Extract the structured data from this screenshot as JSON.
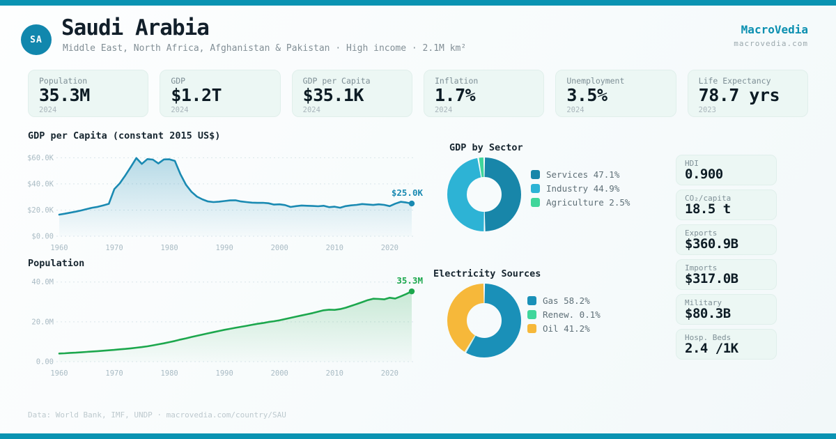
{
  "brand": {
    "name": "MacroVedia",
    "domain": "macrovedia.com"
  },
  "header": {
    "country_code": "SA",
    "country_name": "Saudi Arabia",
    "subtitle": "Middle East, North Africa, Afghanistan & Pakistan · High income · 2.1M km²"
  },
  "colors": {
    "accent_bar": "#0a93b2",
    "badge": "#1187ad",
    "brand": "#0a8fb0",
    "grid": "#d9e5ea",
    "tick": "#a9bbc4"
  },
  "stats": [
    {
      "label": "Population",
      "value": "35.3M",
      "year": "2024"
    },
    {
      "label": "GDP",
      "value": "$1.2T",
      "year": "2024"
    },
    {
      "label": "GDP per Capita",
      "value": "$35.1K",
      "year": "2024"
    },
    {
      "label": "Inflation",
      "value": "1.7%",
      "year": "2024"
    },
    {
      "label": "Unemployment",
      "value": "3.5%",
      "year": "2024"
    },
    {
      "label": "Life Expectancy",
      "value": "78.7 yrs",
      "year": "2023"
    }
  ],
  "side_stats": [
    {
      "label": "HDI",
      "value": "0.900"
    },
    {
      "label": "CO₂/capita",
      "value": "18.5 t"
    },
    {
      "label": "Exports",
      "value": "$360.9B"
    },
    {
      "label": "Imports",
      "value": "$317.0B"
    },
    {
      "label": "Military",
      "value": "$80.3B"
    },
    {
      "label": "Hosp. Beds",
      "value": "2.4 /1K"
    }
  ],
  "footer": {
    "text": "Data: World Bank, IMF, UNDP · macrovedia.com/country/SAU"
  },
  "chart_data": [
    {
      "id": "gdp_per_capita",
      "type": "area",
      "title": "GDP per Capita (constant 2015 US$)",
      "unit": "thousand US$ (constant 2015)",
      "color": "#1a8ab2",
      "fill_from": "rgba(26,138,178,0.30)",
      "fill_to": "rgba(26,138,178,0.02)",
      "end_label": "$25.0K",
      "ylim": [
        0,
        65
      ],
      "yticks": [
        {
          "value": 60,
          "label": "$60.0K"
        },
        {
          "value": 40,
          "label": "$40.0K"
        },
        {
          "value": 20,
          "label": "$20.0K"
        },
        {
          "value": 0,
          "label": "$0.00"
        }
      ],
      "xticks": [
        1960,
        1970,
        1980,
        1990,
        2000,
        2010,
        2020
      ],
      "years": [
        1960,
        1961,
        1962,
        1963,
        1964,
        1965,
        1966,
        1967,
        1968,
        1969,
        1970,
        1971,
        1972,
        1973,
        1974,
        1975,
        1976,
        1977,
        1978,
        1979,
        1980,
        1981,
        1982,
        1983,
        1984,
        1985,
        1986,
        1987,
        1988,
        1989,
        1990,
        1991,
        1992,
        1993,
        1994,
        1995,
        1996,
        1997,
        1998,
        1999,
        2000,
        2001,
        2002,
        2003,
        2004,
        2005,
        2006,
        2007,
        2008,
        2009,
        2010,
        2011,
        2012,
        2013,
        2014,
        2015,
        2016,
        2017,
        2018,
        2019,
        2020,
        2021,
        2022,
        2023,
        2024
      ],
      "values": [
        16.5,
        17.2,
        18.0,
        18.8,
        19.7,
        20.8,
        21.8,
        22.5,
        23.6,
        24.8,
        36.0,
        40.5,
        46.5,
        53.0,
        59.8,
        55.3,
        59.0,
        58.6,
        55.6,
        58.7,
        58.8,
        57.6,
        47.5,
        39.5,
        34.0,
        30.3,
        28.2,
        26.6,
        26.1,
        26.4,
        26.9,
        27.4,
        27.5,
        26.6,
        26.1,
        25.7,
        25.5,
        25.6,
        25.2,
        24.2,
        24.4,
        23.8,
        22.4,
        23.0,
        23.5,
        23.3,
        23.1,
        22.9,
        23.3,
        22.2,
        22.6,
        21.8,
        23.0,
        23.6,
        24.0,
        24.6,
        24.3,
        23.9,
        24.4,
        24.0,
        23.0,
        24.9,
        26.3,
        25.8,
        25.0
      ]
    },
    {
      "id": "population",
      "type": "area",
      "title": "Population",
      "unit": "million people",
      "color": "#1ca74d",
      "fill_from": "rgba(34,167,77,0.22)",
      "fill_to": "rgba(34,167,77,0.02)",
      "end_label": "35.3M",
      "ylim": [
        0,
        42
      ],
      "yticks": [
        {
          "value": 40,
          "label": "40.0M"
        },
        {
          "value": 20,
          "label": "20.0M"
        },
        {
          "value": 0,
          "label": "0.00"
        }
      ],
      "xticks": [
        1960,
        1970,
        1980,
        1990,
        2000,
        2010,
        2020
      ],
      "years": [
        1960,
        1961,
        1962,
        1963,
        1964,
        1965,
        1966,
        1967,
        1968,
        1969,
        1970,
        1971,
        1972,
        1973,
        1974,
        1975,
        1976,
        1977,
        1978,
        1979,
        1980,
        1981,
        1982,
        1983,
        1984,
        1985,
        1986,
        1987,
        1988,
        1989,
        1990,
        1991,
        1992,
        1993,
        1994,
        1995,
        1996,
        1997,
        1998,
        1999,
        2000,
        2001,
        2002,
        2003,
        2004,
        2005,
        2006,
        2007,
        2008,
        2009,
        2010,
        2011,
        2012,
        2013,
        2014,
        2015,
        2016,
        2017,
        2018,
        2019,
        2020,
        2021,
        2022,
        2023,
        2024
      ],
      "values": [
        4.1,
        4.2,
        4.4,
        4.5,
        4.7,
        4.9,
        5.1,
        5.3,
        5.5,
        5.7,
        5.9,
        6.2,
        6.4,
        6.7,
        7.0,
        7.3,
        7.7,
        8.2,
        8.7,
        9.2,
        9.8,
        10.4,
        11.1,
        11.7,
        12.4,
        13.0,
        13.6,
        14.2,
        14.8,
        15.4,
        16.0,
        16.5,
        17.0,
        17.5,
        18.0,
        18.5,
        19.0,
        19.4,
        19.9,
        20.3,
        20.8,
        21.4,
        22.0,
        22.6,
        23.2,
        23.8,
        24.4,
        25.1,
        25.8,
        26.1,
        26.0,
        26.4,
        27.1,
        28.0,
        28.9,
        29.9,
        30.9,
        31.6,
        31.5,
        31.3,
        32.1,
        31.7,
        32.8,
        34.0,
        35.3
      ]
    },
    {
      "id": "gdp_by_sector",
      "type": "donut",
      "title": "GDP by Sector",
      "slices": [
        {
          "label": "Services",
          "pct": 47.1,
          "color": "#1886a9"
        },
        {
          "label": "Industry",
          "pct": 44.9,
          "color": "#2db3d5"
        },
        {
          "label": "Agriculture",
          "pct": 2.5,
          "color": "#40d69b"
        }
      ],
      "legend_position": "right"
    },
    {
      "id": "electricity",
      "type": "donut",
      "title": "Electricity Sources",
      "slices": [
        {
          "label": "Gas",
          "pct": 58.2,
          "color": "#1a90b8"
        },
        {
          "label": "Renew.",
          "pct": 0.1,
          "color": "#40d69b"
        },
        {
          "label": "Oil",
          "pct": 41.2,
          "color": "#f6b83a"
        }
      ],
      "legend_position": "right"
    }
  ]
}
